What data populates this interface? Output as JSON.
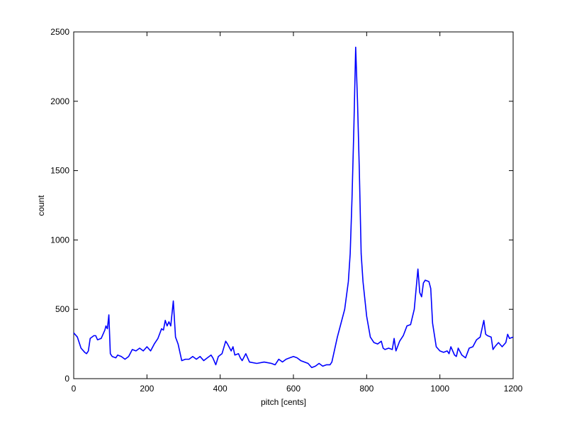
{
  "chart_data": {
    "type": "line",
    "xlabel": "pitch [cents]",
    "ylabel": "count",
    "color": "#0000ff",
    "x": [
      0,
      10,
      20,
      30,
      35,
      40,
      45,
      55,
      60,
      65,
      75,
      85,
      88,
      92,
      96,
      100,
      105,
      115,
      120,
      130,
      140,
      150,
      160,
      170,
      180,
      190,
      200,
      210,
      220,
      230,
      240,
      245,
      250,
      255,
      260,
      265,
      272,
      278,
      285,
      295,
      305,
      315,
      325,
      335,
      345,
      355,
      365,
      375,
      380,
      388,
      395,
      405,
      415,
      420,
      430,
      435,
      440,
      450,
      455,
      460,
      470,
      480,
      500,
      520,
      540,
      550,
      560,
      570,
      580,
      590,
      600,
      610,
      620,
      640,
      650,
      660,
      670,
      680,
      690,
      700,
      705,
      710,
      720,
      730,
      740,
      750,
      755,
      760,
      765,
      770,
      775,
      780,
      785,
      790,
      800,
      810,
      820,
      830,
      840,
      845,
      850,
      860,
      870,
      875,
      880,
      890,
      900,
      910,
      920,
      930,
      940,
      945,
      950,
      955,
      960,
      970,
      975,
      980,
      990,
      1000,
      1010,
      1020,
      1025,
      1030,
      1040,
      1045,
      1050,
      1060,
      1070,
      1080,
      1090,
      1100,
      1110,
      1120,
      1125,
      1130,
      1140,
      1145,
      1150,
      1160,
      1170,
      1180,
      1185,
      1190,
      1200
    ],
    "values": [
      330,
      300,
      220,
      190,
      180,
      200,
      290,
      310,
      310,
      280,
      290,
      350,
      380,
      360,
      460,
      180,
      160,
      150,
      170,
      160,
      140,
      160,
      210,
      200,
      220,
      200,
      230,
      200,
      250,
      290,
      360,
      350,
      420,
      380,
      410,
      380,
      560,
      300,
      250,
      130,
      140,
      140,
      160,
      140,
      160,
      130,
      150,
      170,
      150,
      100,
      160,
      180,
      270,
      250,
      200,
      230,
      170,
      180,
      150,
      130,
      180,
      120,
      110,
      120,
      110,
      100,
      140,
      120,
      140,
      150,
      160,
      150,
      130,
      110,
      80,
      90,
      110,
      90,
      100,
      100,
      120,
      180,
      300,
      400,
      500,
      700,
      900,
      1300,
      1800,
      2390,
      2000,
      1500,
      900,
      700,
      450,
      300,
      260,
      250,
      270,
      220,
      210,
      220,
      210,
      290,
      200,
      270,
      310,
      380,
      390,
      500,
      790,
      620,
      590,
      690,
      710,
      700,
      650,
      400,
      230,
      200,
      190,
      200,
      180,
      230,
      170,
      160,
      220,
      170,
      150,
      220,
      230,
      280,
      300,
      420,
      320,
      310,
      300,
      210,
      230,
      260,
      230,
      260,
      320,
      290,
      300
    ],
    "xlim": [
      0,
      1200
    ],
    "xticks": [
      0,
      200,
      400,
      600,
      800,
      1000,
      1200
    ],
    "ylim": [
      0,
      2500
    ],
    "yticks": [
      0,
      500,
      1000,
      1500,
      2000,
      2500
    ]
  }
}
